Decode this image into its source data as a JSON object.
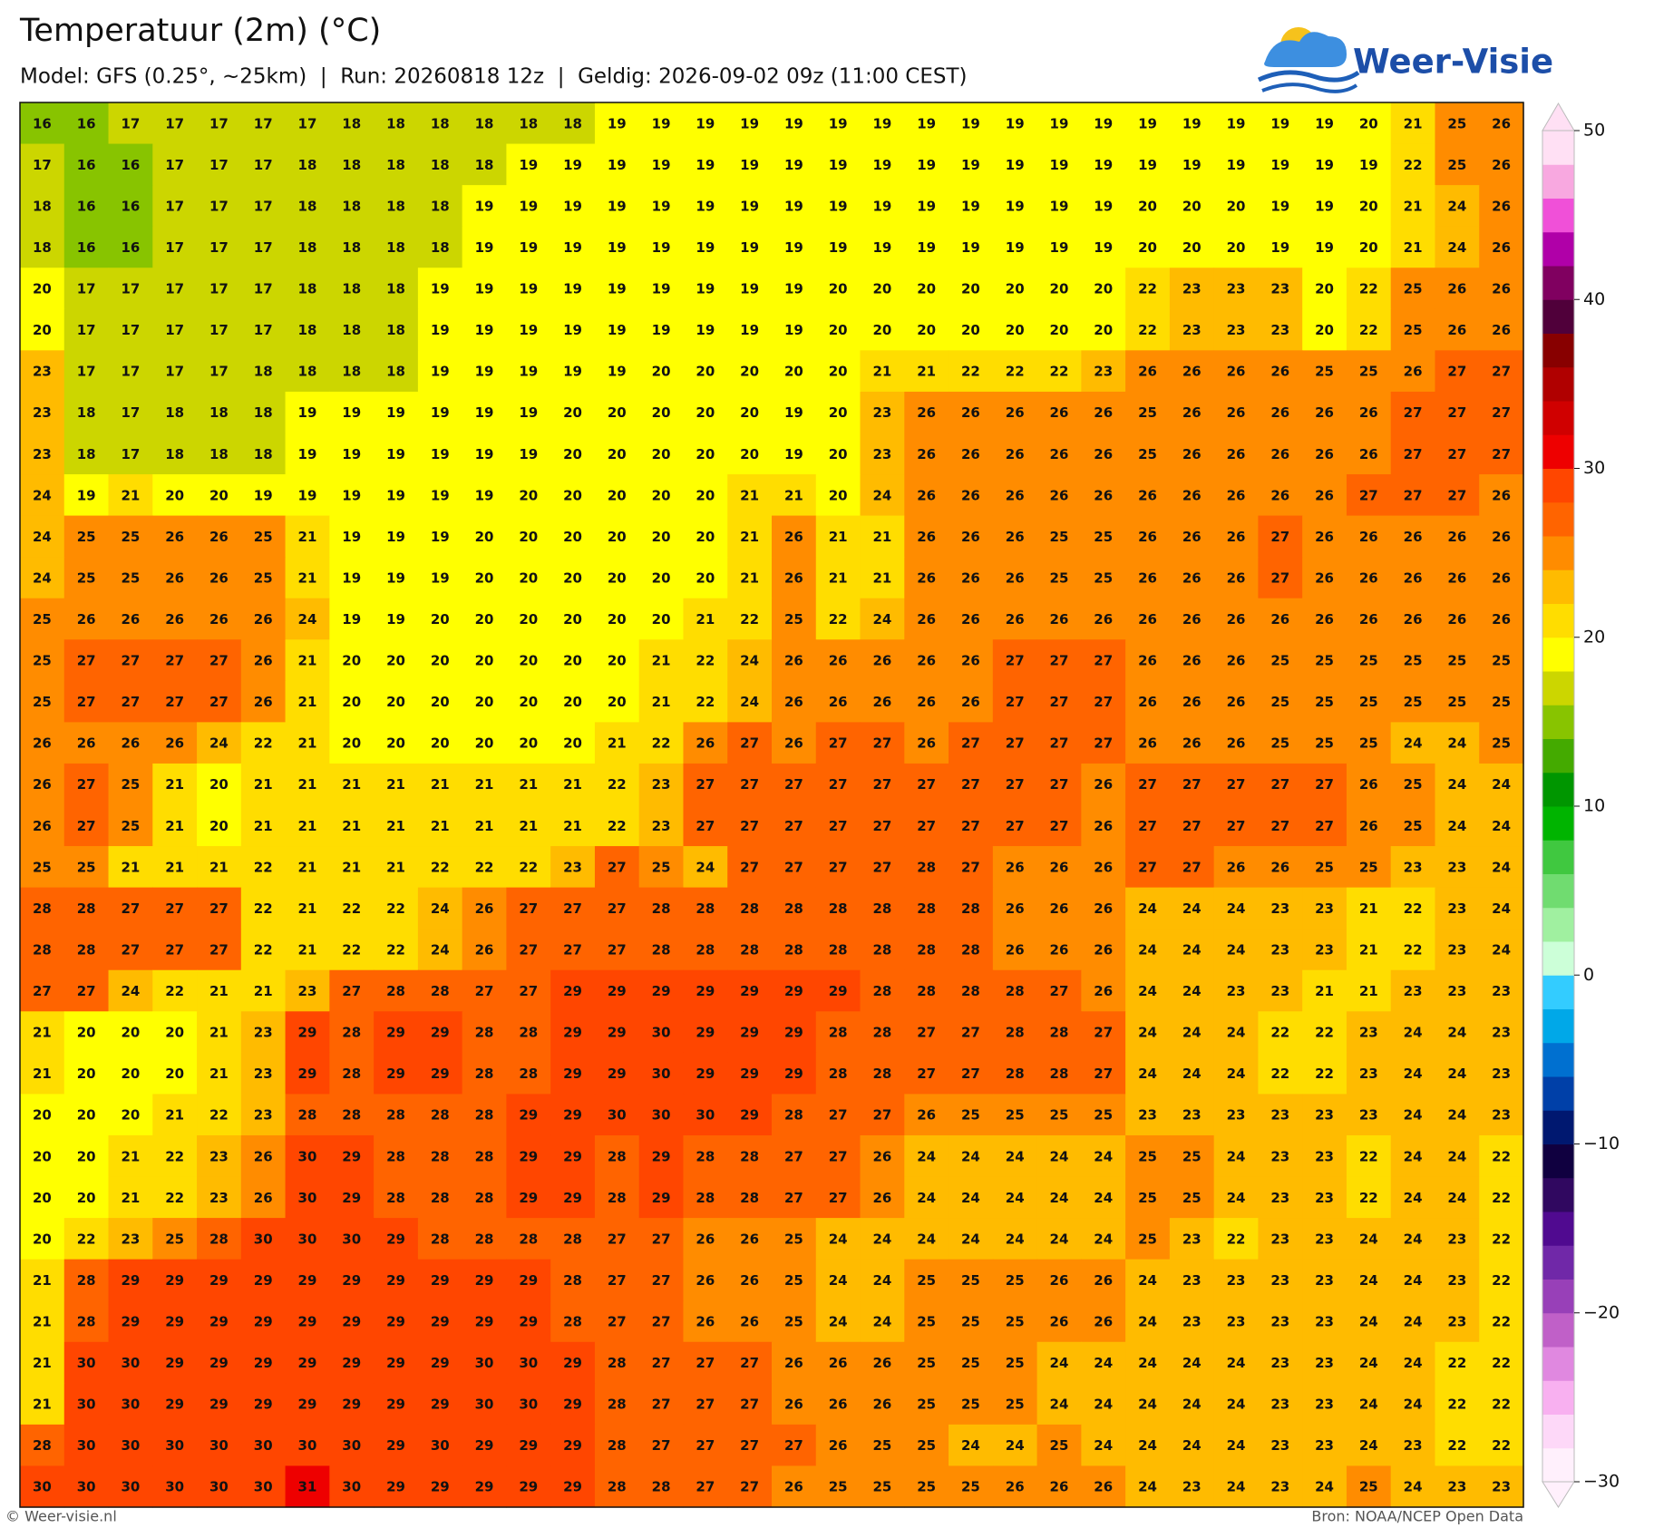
{
  "chart_data": {
    "type": "heatmap",
    "title": "Temperatuur (2m) (°C)",
    "subtitle": "Model: GFS (0.25°, ~25km)  |  Run: 20260818 12z  |  Geldig: 2026-09-02 09z (11:00 CEST)",
    "values": [
      [
        16,
        16,
        17,
        17,
        17,
        17,
        17,
        18,
        18,
        18,
        18,
        18,
        18,
        19,
        19,
        19,
        19,
        19,
        19,
        19,
        19,
        19,
        19,
        19,
        19,
        19,
        19,
        19,
        19,
        19,
        20,
        21,
        25,
        26
      ],
      [
        17,
        16,
        16,
        17,
        17,
        17,
        18,
        18,
        18,
        18,
        18,
        19,
        19,
        19,
        19,
        19,
        19,
        19,
        19,
        19,
        19,
        19,
        19,
        19,
        19,
        19,
        19,
        19,
        19,
        19,
        19,
        22,
        25,
        26
      ],
      [
        18,
        16,
        16,
        17,
        17,
        17,
        18,
        18,
        18,
        18,
        19,
        19,
        19,
        19,
        19,
        19,
        19,
        19,
        19,
        19,
        19,
        19,
        19,
        19,
        19,
        20,
        20,
        20,
        19,
        19,
        20,
        21,
        24,
        26
      ],
      [
        18,
        16,
        16,
        17,
        17,
        17,
        18,
        18,
        18,
        18,
        19,
        19,
        19,
        19,
        19,
        19,
        19,
        19,
        19,
        19,
        19,
        19,
        19,
        19,
        19,
        20,
        20,
        20,
        19,
        19,
        20,
        21,
        24,
        26
      ],
      [
        20,
        17,
        17,
        17,
        17,
        17,
        18,
        18,
        18,
        19,
        19,
        19,
        19,
        19,
        19,
        19,
        19,
        19,
        20,
        20,
        20,
        20,
        20,
        20,
        20,
        22,
        23,
        23,
        23,
        20,
        22,
        25,
        26,
        26
      ],
      [
        20,
        17,
        17,
        17,
        17,
        17,
        18,
        18,
        18,
        19,
        19,
        19,
        19,
        19,
        19,
        19,
        19,
        19,
        20,
        20,
        20,
        20,
        20,
        20,
        20,
        22,
        23,
        23,
        23,
        20,
        22,
        25,
        26,
        26
      ],
      [
        23,
        17,
        17,
        17,
        17,
        18,
        18,
        18,
        18,
        19,
        19,
        19,
        19,
        19,
        20,
        20,
        20,
        20,
        20,
        21,
        21,
        22,
        22,
        22,
        23,
        26,
        26,
        26,
        26,
        25,
        25,
        26,
        27,
        27
      ],
      [
        23,
        18,
        17,
        18,
        18,
        18,
        19,
        19,
        19,
        19,
        19,
        19,
        20,
        20,
        20,
        20,
        20,
        19,
        20,
        23,
        26,
        26,
        26,
        26,
        26,
        25,
        26,
        26,
        26,
        26,
        26,
        27,
        27,
        27
      ],
      [
        23,
        18,
        17,
        18,
        18,
        18,
        19,
        19,
        19,
        19,
        19,
        19,
        20,
        20,
        20,
        20,
        20,
        19,
        20,
        23,
        26,
        26,
        26,
        26,
        26,
        25,
        26,
        26,
        26,
        26,
        26,
        27,
        27,
        27
      ],
      [
        24,
        19,
        21,
        20,
        20,
        19,
        19,
        19,
        19,
        19,
        19,
        20,
        20,
        20,
        20,
        20,
        21,
        21,
        20,
        24,
        26,
        26,
        26,
        26,
        26,
        26,
        26,
        26,
        26,
        26,
        27,
        27,
        27,
        26
      ],
      [
        24,
        25,
        25,
        26,
        26,
        25,
        21,
        19,
        19,
        19,
        20,
        20,
        20,
        20,
        20,
        20,
        21,
        26,
        21,
        21,
        26,
        26,
        26,
        25,
        25,
        26,
        26,
        26,
        27,
        26,
        26,
        26,
        26,
        26
      ],
      [
        24,
        25,
        25,
        26,
        26,
        25,
        21,
        19,
        19,
        19,
        20,
        20,
        20,
        20,
        20,
        20,
        21,
        26,
        21,
        21,
        26,
        26,
        26,
        25,
        25,
        26,
        26,
        26,
        27,
        26,
        26,
        26,
        26,
        26
      ],
      [
        25,
        26,
        26,
        26,
        26,
        26,
        24,
        19,
        19,
        20,
        20,
        20,
        20,
        20,
        20,
        21,
        22,
        25,
        22,
        24,
        26,
        26,
        26,
        26,
        26,
        26,
        26,
        26,
        26,
        26,
        26,
        26,
        26,
        26
      ],
      [
        25,
        27,
        27,
        27,
        27,
        26,
        21,
        20,
        20,
        20,
        20,
        20,
        20,
        20,
        21,
        22,
        24,
        26,
        26,
        26,
        26,
        26,
        27,
        27,
        27,
        26,
        26,
        26,
        25,
        25,
        25,
        25,
        25,
        25
      ],
      [
        25,
        27,
        27,
        27,
        27,
        26,
        21,
        20,
        20,
        20,
        20,
        20,
        20,
        20,
        21,
        22,
        24,
        26,
        26,
        26,
        26,
        26,
        27,
        27,
        27,
        26,
        26,
        26,
        25,
        25,
        25,
        25,
        25,
        25
      ],
      [
        26,
        26,
        26,
        26,
        24,
        22,
        21,
        20,
        20,
        20,
        20,
        20,
        20,
        21,
        22,
        26,
        27,
        26,
        27,
        27,
        26,
        27,
        27,
        27,
        27,
        26,
        26,
        26,
        25,
        25,
        25,
        24,
        24,
        25
      ],
      [
        26,
        27,
        25,
        21,
        20,
        21,
        21,
        21,
        21,
        21,
        21,
        21,
        21,
        22,
        23,
        27,
        27,
        27,
        27,
        27,
        27,
        27,
        27,
        27,
        26,
        27,
        27,
        27,
        27,
        27,
        26,
        25,
        24,
        24
      ],
      [
        26,
        27,
        25,
        21,
        20,
        21,
        21,
        21,
        21,
        21,
        21,
        21,
        21,
        22,
        23,
        27,
        27,
        27,
        27,
        27,
        27,
        27,
        27,
        27,
        26,
        27,
        27,
        27,
        27,
        27,
        26,
        25,
        24,
        24
      ],
      [
        25,
        25,
        21,
        21,
        21,
        22,
        21,
        21,
        21,
        22,
        22,
        22,
        23,
        27,
        25,
        24,
        27,
        27,
        27,
        27,
        28,
        27,
        26,
        26,
        26,
        27,
        27,
        26,
        26,
        25,
        25,
        23,
        23,
        24
      ],
      [
        28,
        28,
        27,
        27,
        27,
        22,
        21,
        22,
        22,
        24,
        26,
        27,
        27,
        27,
        28,
        28,
        28,
        28,
        28,
        28,
        28,
        28,
        26,
        26,
        26,
        24,
        24,
        24,
        23,
        23,
        21,
        22,
        23,
        24
      ],
      [
        28,
        28,
        27,
        27,
        27,
        22,
        21,
        22,
        22,
        24,
        26,
        27,
        27,
        27,
        28,
        28,
        28,
        28,
        28,
        28,
        28,
        28,
        26,
        26,
        26,
        24,
        24,
        24,
        23,
        23,
        21,
        22,
        23,
        24
      ],
      [
        27,
        27,
        24,
        22,
        21,
        21,
        23,
        27,
        28,
        28,
        27,
        27,
        29,
        29,
        29,
        29,
        29,
        29,
        29,
        28,
        28,
        28,
        28,
        27,
        26,
        24,
        24,
        23,
        23,
        21,
        21,
        23,
        23,
        23
      ],
      [
        21,
        20,
        20,
        20,
        21,
        23,
        29,
        28,
        29,
        29,
        28,
        28,
        29,
        29,
        30,
        29,
        29,
        29,
        28,
        28,
        27,
        27,
        28,
        28,
        27,
        24,
        24,
        24,
        22,
        22,
        23,
        24,
        24,
        23
      ],
      [
        21,
        20,
        20,
        20,
        21,
        23,
        29,
        28,
        29,
        29,
        28,
        28,
        29,
        29,
        30,
        29,
        29,
        29,
        28,
        28,
        27,
        27,
        28,
        28,
        27,
        24,
        24,
        24,
        22,
        22,
        23,
        24,
        24,
        23
      ],
      [
        20,
        20,
        20,
        21,
        22,
        23,
        28,
        28,
        28,
        28,
        28,
        29,
        29,
        30,
        30,
        30,
        29,
        28,
        27,
        27,
        26,
        25,
        25,
        25,
        25,
        23,
        23,
        23,
        23,
        23,
        23,
        24,
        24,
        23
      ],
      [
        20,
        20,
        21,
        22,
        23,
        26,
        30,
        29,
        28,
        28,
        28,
        29,
        29,
        28,
        29,
        28,
        28,
        27,
        27,
        26,
        24,
        24,
        24,
        24,
        24,
        25,
        25,
        24,
        23,
        23,
        22,
        24,
        24,
        22
      ],
      [
        20,
        20,
        21,
        22,
        23,
        26,
        30,
        29,
        28,
        28,
        28,
        29,
        29,
        28,
        29,
        28,
        28,
        27,
        27,
        26,
        24,
        24,
        24,
        24,
        24,
        25,
        25,
        24,
        23,
        23,
        22,
        24,
        24,
        22
      ],
      [
        20,
        22,
        23,
        25,
        28,
        30,
        30,
        30,
        29,
        28,
        28,
        28,
        28,
        27,
        27,
        26,
        26,
        25,
        24,
        24,
        24,
        24,
        24,
        24,
        24,
        25,
        23,
        22,
        23,
        23,
        24,
        24,
        23,
        22
      ],
      [
        21,
        28,
        29,
        29,
        29,
        29,
        29,
        29,
        29,
        29,
        29,
        29,
        28,
        27,
        27,
        26,
        26,
        25,
        24,
        24,
        25,
        25,
        25,
        26,
        26,
        24,
        23,
        23,
        23,
        23,
        24,
        24,
        23,
        22
      ],
      [
        21,
        28,
        29,
        29,
        29,
        29,
        29,
        29,
        29,
        29,
        29,
        29,
        28,
        27,
        27,
        26,
        26,
        25,
        24,
        24,
        25,
        25,
        25,
        26,
        26,
        24,
        23,
        23,
        23,
        23,
        24,
        24,
        23,
        22
      ],
      [
        21,
        30,
        30,
        29,
        29,
        29,
        29,
        29,
        29,
        29,
        30,
        30,
        29,
        28,
        27,
        27,
        27,
        26,
        26,
        26,
        25,
        25,
        25,
        24,
        24,
        24,
        24,
        24,
        23,
        23,
        24,
        24,
        22,
        22
      ],
      [
        21,
        30,
        30,
        29,
        29,
        29,
        29,
        29,
        29,
        29,
        30,
        30,
        29,
        28,
        27,
        27,
        27,
        26,
        26,
        26,
        25,
        25,
        25,
        24,
        24,
        24,
        24,
        24,
        23,
        23,
        24,
        24,
        22,
        22
      ],
      [
        28,
        30,
        30,
        30,
        30,
        30,
        30,
        30,
        29,
        30,
        29,
        29,
        29,
        28,
        27,
        27,
        27,
        27,
        26,
        25,
        25,
        24,
        24,
        25,
        24,
        24,
        24,
        24,
        23,
        23,
        24,
        23,
        22,
        22
      ],
      [
        30,
        30,
        30,
        30,
        30,
        30,
        31,
        30,
        29,
        29,
        29,
        29,
        29,
        28,
        28,
        27,
        27,
        26,
        25,
        25,
        25,
        25,
        26,
        26,
        26,
        24,
        23,
        24,
        23,
        24,
        25,
        24,
        23,
        23
      ]
    ],
    "colorbar": {
      "lim": [
        -30,
        50
      ],
      "ticks": [
        {
          "value": 50,
          "label": "50"
        },
        {
          "value": 40,
          "label": "40"
        },
        {
          "value": 30,
          "label": "30"
        },
        {
          "value": 20,
          "label": "20"
        },
        {
          "value": 10,
          "label": "10"
        },
        {
          "value": 0,
          "label": "0"
        },
        {
          "value": -10,
          "label": "−10"
        },
        {
          "value": -20,
          "label": "−20"
        },
        {
          "value": -30,
          "label": "−30"
        }
      ],
      "colors": [
        "#fff0fc",
        "#fdd8f8",
        "#f8b0f0",
        "#e088e0",
        "#c060c8",
        "#9840b8",
        "#7028a8",
        "#500a90",
        "#300860",
        "#100040",
        "#001870",
        "#0040a8",
        "#0070d0",
        "#00a8e8",
        "#33ccff",
        "#ccffd8",
        "#a0f0a0",
        "#70dc70",
        "#40c840",
        "#00b400",
        "#009600",
        "#44aa00",
        "#88c400",
        "#ccd600",
        "#ffff00",
        "#ffdd00",
        "#ffbb00",
        "#ff8c00",
        "#ff6400",
        "#ff4600",
        "#ee0000",
        "#d00000",
        "#b00000",
        "#880000",
        "#50003a",
        "#800060",
        "#b000a8",
        "#f050d8",
        "#f8a8e0",
        "#ffe0f4"
      ]
    }
  },
  "logo": "Weer-Visie",
  "footer": {
    "left": "© Weer-visie.nl",
    "right": "Bron: NOAA/NCEP Open Data"
  }
}
